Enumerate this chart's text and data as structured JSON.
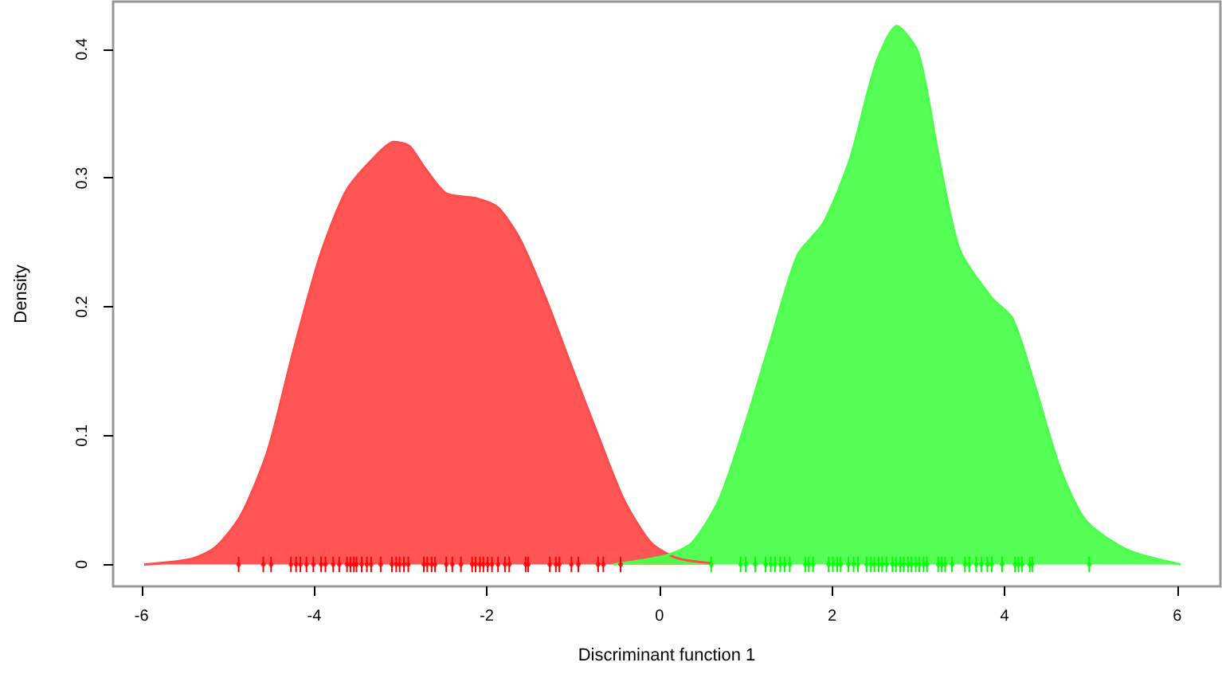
{
  "chart_data": {
    "type": "area",
    "xlabel": "Discriminant function 1",
    "ylabel": "Density",
    "xlim": [
      -6.33,
      6.5
    ],
    "ylim": [
      -0.017,
      0.437
    ],
    "xticks": [
      -6,
      -4,
      -2,
      0,
      2,
      4,
      6
    ],
    "yticks": [
      0,
      0.1,
      0.2,
      0.3,
      0.4
    ],
    "grid": false,
    "series": [
      {
        "type": "area",
        "color": "#ff4c4c",
        "x": [
          -5.97,
          -5.44,
          -5.15,
          -4.85,
          -4.54,
          -4.24,
          -3.93,
          -3.63,
          -3.32,
          -3.08,
          -2.9,
          -2.72,
          -2.47,
          -2.11,
          -1.87,
          -1.62,
          -1.32,
          -1.02,
          -0.71,
          -0.41,
          -0.1,
          0.2,
          0.6
        ],
        "values": [
          0,
          0.004,
          0.013,
          0.038,
          0.088,
          0.166,
          0.24,
          0.29,
          0.315,
          0.328,
          0.325,
          0.308,
          0.288,
          0.284,
          0.277,
          0.253,
          0.207,
          0.154,
          0.1,
          0.05,
          0.017,
          0.005,
          0.001
        ]
      },
      {
        "type": "area",
        "color": "#4cff4c",
        "x": [
          -0.53,
          0.08,
          0.38,
          0.69,
          0.99,
          1.29,
          1.6,
          1.9,
          2.21,
          2.51,
          2.75,
          3.0,
          3.24,
          3.48,
          3.85,
          4.09,
          4.34,
          4.64,
          4.94,
          5.43,
          6.04
        ],
        "values": [
          0,
          0.007,
          0.017,
          0.05,
          0.108,
          0.174,
          0.24,
          0.265,
          0.315,
          0.389,
          0.418,
          0.397,
          0.315,
          0.244,
          0.207,
          0.191,
          0.141,
          0.075,
          0.034,
          0.011,
          0
        ]
      },
      {
        "type": "scatter",
        "color": "#ff0000",
        "x": [
          -4.875,
          -4.59,
          -4.5,
          -4.27,
          -4.21,
          -4.16,
          -4.09,
          -4.01,
          -3.92,
          -3.87,
          -3.78,
          -3.71,
          -3.62,
          -3.58,
          -3.54,
          -3.51,
          -3.45,
          -3.39,
          -3.34,
          -3.23,
          -3.1,
          -3.05,
          -3.01,
          -2.96,
          -2.91,
          -2.73,
          -2.69,
          -2.64,
          -2.6,
          -2.47,
          -2.4,
          -2.3,
          -2.17,
          -2.13,
          -2.08,
          -2.04,
          -1.99,
          -1.94,
          -1.87,
          -1.79,
          -1.74,
          -1.55,
          -1.52,
          -1.27,
          -1.2,
          -1.16,
          -1.02,
          -0.94,
          -0.71,
          -0.65,
          -0.45
        ],
        "values": [
          0,
          0,
          0,
          0,
          0,
          0,
          0,
          0,
          0,
          0,
          0,
          0,
          0,
          0,
          0,
          0,
          0,
          0,
          0,
          0,
          0,
          0,
          0,
          0,
          0,
          0,
          0,
          0,
          0,
          0,
          0,
          0,
          0,
          0,
          0,
          0,
          0,
          0,
          0,
          0,
          0,
          0,
          0,
          0,
          0,
          0,
          0,
          0,
          0,
          0,
          0
        ],
        "errors": [
          0.006,
          0.006,
          0.006,
          0.006,
          0.006,
          0.006,
          0.006,
          0.006,
          0.006,
          0.006,
          0.006,
          0.006,
          0.006,
          0.006,
          0.006,
          0.006,
          0.006,
          0.006,
          0.006,
          0.006,
          0.006,
          0.006,
          0.006,
          0.006,
          0.006,
          0.006,
          0.006,
          0.006,
          0.006,
          0.006,
          0.006,
          0.006,
          0.006,
          0.006,
          0.006,
          0.006,
          0.006,
          0.006,
          0.006,
          0.006,
          0.006,
          0.006,
          0.006,
          0.006,
          0.006,
          0.006,
          0.006,
          0.006,
          0.006,
          0.006,
          0.006
        ]
      },
      {
        "type": "scatter",
        "color": "#00ff00",
        "x": [
          0.6,
          0.94,
          1.0,
          1.11,
          1.23,
          1.29,
          1.34,
          1.4,
          1.45,
          1.51,
          1.69,
          1.73,
          1.78,
          1.96,
          2.01,
          2.06,
          2.1,
          2.19,
          2.25,
          2.3,
          2.4,
          2.45,
          2.49,
          2.54,
          2.58,
          2.63,
          2.7,
          2.74,
          2.79,
          2.83,
          2.88,
          2.92,
          2.97,
          3.01,
          3.06,
          3.1,
          3.23,
          3.27,
          3.31,
          3.39,
          3.54,
          3.59,
          3.67,
          3.73,
          3.8,
          3.85,
          3.97,
          4.12,
          4.16,
          4.2,
          4.29,
          4.32,
          4.98
        ],
        "values": [
          0,
          0,
          0,
          0,
          0,
          0,
          0,
          0,
          0,
          0,
          0,
          0,
          0,
          0,
          0,
          0,
          0,
          0,
          0,
          0,
          0,
          0,
          0,
          0,
          0,
          0,
          0,
          0,
          0,
          0,
          0,
          0,
          0,
          0,
          0,
          0,
          0,
          0,
          0,
          0,
          0,
          0,
          0,
          0,
          0,
          0,
          0,
          0,
          0,
          0,
          0,
          0,
          0
        ],
        "errors": [
          0.006,
          0.006,
          0.006,
          0.006,
          0.006,
          0.006,
          0.006,
          0.006,
          0.006,
          0.006,
          0.006,
          0.006,
          0.006,
          0.006,
          0.006,
          0.006,
          0.006,
          0.006,
          0.006,
          0.006,
          0.006,
          0.006,
          0.006,
          0.006,
          0.006,
          0.006,
          0.006,
          0.006,
          0.006,
          0.006,
          0.006,
          0.006,
          0.006,
          0.006,
          0.006,
          0.006,
          0.006,
          0.006,
          0.006,
          0.006,
          0.006,
          0.006,
          0.006,
          0.006,
          0.006,
          0.006,
          0.006,
          0.006,
          0.006,
          0.006,
          0.006,
          0.006,
          0.006
        ]
      }
    ]
  }
}
